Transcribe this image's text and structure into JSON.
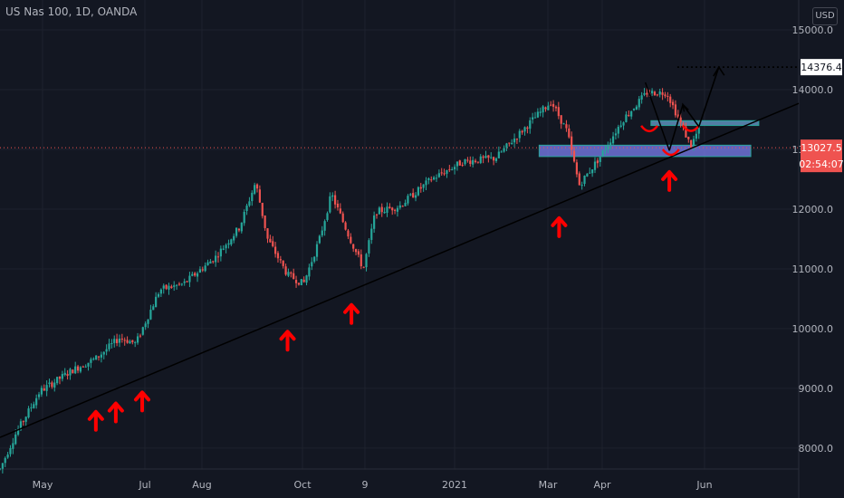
{
  "header": {
    "title": "US Nas 100, 1D, OANDA",
    "currency": "USD"
  },
  "colors": {
    "background": "#131722",
    "grid": "#1e222d",
    "text": "#b2b5be",
    "up": "#26a69a",
    "down": "#ef5350",
    "trendline": "#000000",
    "arrow": "#ff0000",
    "zone_fill": "#7b7ff0",
    "zone_border": "#26a69a",
    "current_line": "#ef5350",
    "target_label_bg": "#ffffff",
    "target_label_text": "#131722"
  },
  "chart_data": {
    "type": "candlestick",
    "title": "US Nas 100, 1D, OANDA",
    "x_ticks": [
      "May",
      "Jul",
      "Aug",
      "Oct",
      "9",
      "2021",
      "Mar",
      "Apr",
      "Jun"
    ],
    "y_ticks": [
      15000.0,
      14000.0,
      13000.0,
      12000.0,
      11000.0,
      10000.0,
      9000.0,
      8000.0
    ],
    "ylim": [
      7650,
      15500
    ],
    "price_path": [
      {
        "t": 0,
        "v": 7650
      },
      {
        "t": 0.02,
        "v": 8250
      },
      {
        "t": 0.05,
        "v": 8950
      },
      {
        "t": 0.09,
        "v": 9300
      },
      {
        "t": 0.12,
        "v": 9500
      },
      {
        "t": 0.15,
        "v": 9850
      },
      {
        "t": 0.17,
        "v": 9750
      },
      {
        "t": 0.2,
        "v": 10650
      },
      {
        "t": 0.23,
        "v": 10750
      },
      {
        "t": 0.27,
        "v": 11200
      },
      {
        "t": 0.3,
        "v": 11700
      },
      {
        "t": 0.32,
        "v": 12450
      },
      {
        "t": 0.335,
        "v": 11500
      },
      {
        "t": 0.36,
        "v": 10900
      },
      {
        "t": 0.38,
        "v": 10750
      },
      {
        "t": 0.4,
        "v": 11500
      },
      {
        "t": 0.415,
        "v": 12250
      },
      {
        "t": 0.44,
        "v": 11450
      },
      {
        "t": 0.455,
        "v": 11000
      },
      {
        "t": 0.47,
        "v": 11950
      },
      {
        "t": 0.5,
        "v": 12050
      },
      {
        "t": 0.54,
        "v": 12500
      },
      {
        "t": 0.58,
        "v": 12800
      },
      {
        "t": 0.62,
        "v": 12850
      },
      {
        "t": 0.66,
        "v": 13400
      },
      {
        "t": 0.69,
        "v": 13800
      },
      {
        "t": 0.71,
        "v": 13300
      },
      {
        "t": 0.725,
        "v": 12400
      },
      {
        "t": 0.75,
        "v": 12850
      },
      {
        "t": 0.78,
        "v": 13500
      },
      {
        "t": 0.81,
        "v": 13950
      },
      {
        "t": 0.835,
        "v": 13950
      },
      {
        "t": 0.85,
        "v": 13500
      },
      {
        "t": 0.865,
        "v": 13050
      },
      {
        "t": 0.875,
        "v": 13350
      }
    ],
    "trendline": [
      {
        "date_frac": 0.0,
        "value": 8180
      },
      {
        "date_frac": 1.0,
        "value": 13770
      }
    ],
    "support_arrows": [
      0.12,
      0.145,
      0.178,
      0.36,
      0.44,
      0.7,
      0.838
    ],
    "zones": [
      {
        "name": "support_zone",
        "low": 12880,
        "high": 13070
      },
      {
        "name": "upper_zone",
        "low": 13400,
        "high": 13480
      }
    ],
    "projection": [
      {
        "t": 0.838,
        "v": 12980
      },
      {
        "t": 0.855,
        "v": 13750
      },
      {
        "t": 0.875,
        "v": 13380
      },
      {
        "t": 0.9,
        "v": 14376.4
      }
    ],
    "target_price": 14376.4,
    "current_price": 13027.5,
    "timer": "02:54:07",
    "price_labels": {
      "target": "14376.4",
      "current": "13027.5",
      "timer": "02:54:07"
    }
  }
}
